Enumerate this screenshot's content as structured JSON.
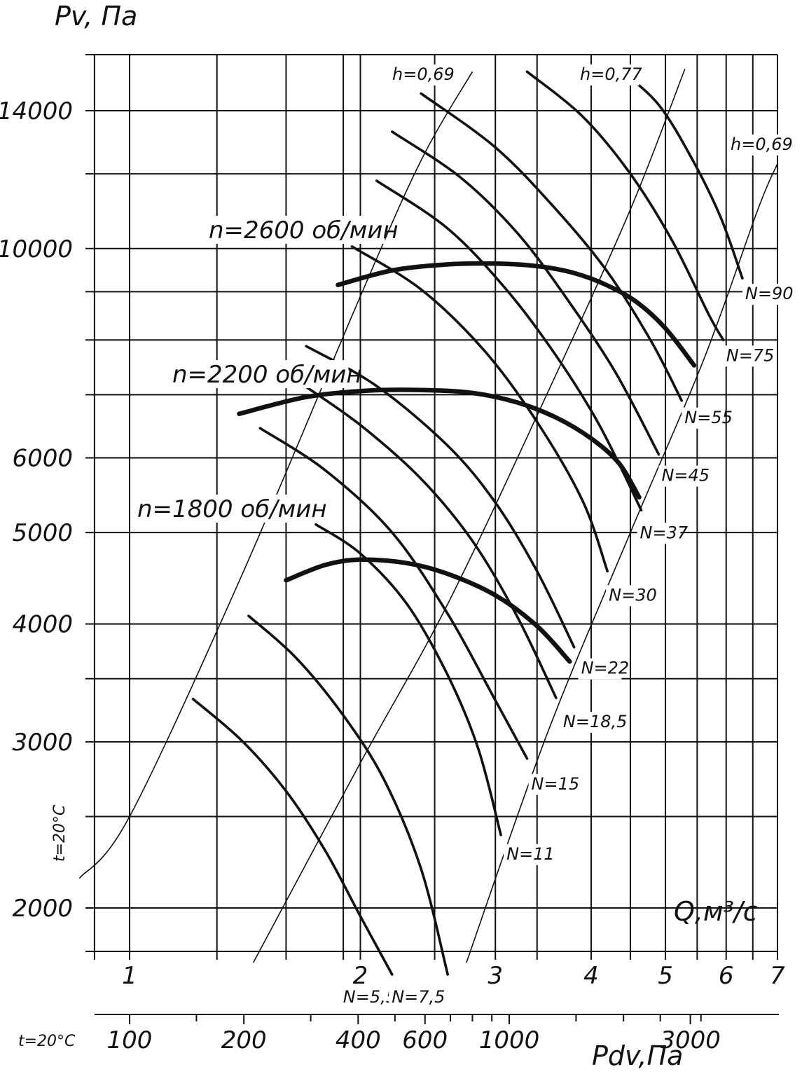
{
  "chart_data": {
    "type": "line",
    "title": "",
    "ylabel": "Pv, Па",
    "xlabel": "Q,м³/с",
    "x2label": "Pdv,Па",
    "temperature_left": "t=20°C",
    "temperature_bottom": "t=20°C",
    "x_scale": "log",
    "y_scale": "log",
    "xlim": [
      0.86,
      7
    ],
    "ylim": [
      1750,
      15500
    ],
    "x_ticks": [
      "1",
      "2",
      "3",
      "4",
      "5",
      "6",
      "7"
    ],
    "y_ticks": [
      "2000",
      "3000",
      "4000",
      "5000",
      "6000",
      "10000",
      "14000"
    ],
    "pdv_ticks": [
      "100",
      "200",
      "400",
      "600",
      "1000",
      "3000"
    ],
    "speed_series": [
      {
        "name": "n=1800 об/мин",
        "x": [
          1.6,
          1.8,
          2.0,
          2.3,
          2.6,
          3.0,
          3.4,
          3.75
        ],
        "y": [
          4450,
          4620,
          4680,
          4640,
          4520,
          4290,
          3980,
          3650
        ]
      },
      {
        "name": "n=2200 об/мин",
        "x": [
          1.39,
          1.7,
          2.05,
          2.4,
          2.8,
          3.2,
          3.6,
          4.0,
          4.35,
          4.62
        ],
        "y": [
          6680,
          6960,
          7070,
          7080,
          7030,
          6870,
          6620,
          6290,
          5920,
          5450
        ]
      },
      {
        "name": "n=2600 об/мин",
        "x": [
          1.87,
          2.2,
          2.6,
          3.0,
          3.4,
          3.8,
          4.2,
          4.6,
          5.0,
          5.45
        ],
        "y": [
          9150,
          9480,
          9620,
          9640,
          9580,
          9420,
          9140,
          8760,
          8230,
          7520
        ]
      }
    ],
    "power_series": [
      {
        "name": "N=5,5",
        "x": [
          1.21,
          1.4,
          1.6,
          1.8,
          2.0,
          2.2
        ],
        "y": [
          3330,
          3010,
          2660,
          2300,
          1960,
          1700
        ]
      },
      {
        "name": "N=7,5",
        "x": [
          1.43,
          1.65,
          1.9,
          2.15,
          2.4,
          2.6
        ],
        "y": [
          4080,
          3680,
          3200,
          2730,
          2200,
          1700
        ]
      },
      {
        "name": "N=11",
        "x": [
          1.75,
          2.0,
          2.3,
          2.6,
          2.85,
          3.05
        ],
        "y": [
          5100,
          4750,
          4200,
          3530,
          2950,
          2390
        ]
      },
      {
        "name": "N=15",
        "x": [
          1.48,
          1.8,
          2.2,
          2.6,
          3.0,
          3.3
        ],
        "y": [
          6450,
          5820,
          5000,
          4100,
          3320,
          2880
        ]
      },
      {
        "name": "N=18,5",
        "x": [
          1.68,
          2.0,
          2.4,
          2.8,
          3.2,
          3.6
        ],
        "y": [
          7180,
          6500,
          5700,
          4900,
          4080,
          3340
        ]
      },
      {
        "name": "N=22",
        "x": [
          1.7,
          2.1,
          2.6,
          3.0,
          3.4,
          3.8
        ],
        "y": [
          7880,
          7150,
          6180,
          5380,
          4550,
          3780
        ]
      },
      {
        "name": "N=30",
        "x": [
          1.95,
          2.4,
          2.9,
          3.4,
          3.9,
          4.2
        ],
        "y": [
          10050,
          9050,
          7800,
          6550,
          5400,
          4550
        ]
      },
      {
        "name": "N=37",
        "x": [
          2.1,
          2.6,
          3.1,
          3.6,
          4.1,
          4.65
        ],
        "y": [
          11800,
          10500,
          9050,
          7700,
          6500,
          5280
        ]
      },
      {
        "name": "N=45",
        "x": [
          2.2,
          2.7,
          3.2,
          3.7,
          4.3,
          4.9
        ],
        "y": [
          13300,
          11900,
          10400,
          8900,
          7400,
          6050
        ]
      },
      {
        "name": "N=55",
        "x": [
          2.4,
          3.0,
          3.6,
          4.2,
          4.8,
          5.25
        ],
        "y": [
          14600,
          12800,
          11000,
          9450,
          7950,
          6900
        ]
      },
      {
        "name": "N=75",
        "x": [
          3.3,
          3.9,
          4.5,
          5.1,
          5.7,
          5.95
        ],
        "y": [
          15400,
          13800,
          12000,
          10200,
          8500,
          8000
        ]
      },
      {
        "name": "N=90",
        "x": [
          4.4,
          4.9,
          5.4,
          5.9,
          6.3
        ],
        "y": [
          15400,
          14200,
          12500,
          10800,
          9300
        ]
      }
    ],
    "efficiency_lines": [
      {
        "name": "h=0,69",
        "x": [
          0.86,
          1.0,
          1.4,
          2.0,
          2.4,
          2.8
        ],
        "y": [
          2150,
          2500,
          4500,
          8900,
          12400,
          15400
        ]
      },
      {
        "name": "h=0,77",
        "x": [
          1.45,
          2.0,
          2.6,
          3.5,
          4.5,
          5.3
        ],
        "y": [
          1750,
          2850,
          4200,
          7000,
          11000,
          15500
        ]
      },
      {
        "name": "h=0,69",
        "x": [
          2.75,
          3.5,
          4.5,
          5.6,
          6.6,
          7.0
        ],
        "y": [
          1750,
          3050,
          5000,
          7600,
          11000,
          12300
        ]
      }
    ]
  }
}
